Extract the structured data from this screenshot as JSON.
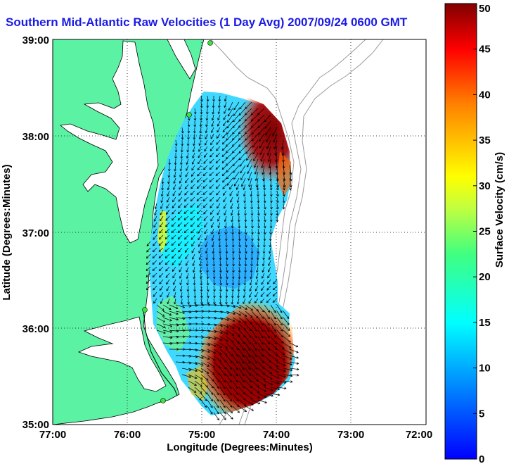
{
  "title": "Southern Mid-Atlantic Raw Velocities (1 Day Avg) 2007/09/24 0600 GMT",
  "axes": {
    "xlabel": "Longitude (Degrees:Minutes)",
    "ylabel": "Latitude (Degrees:Minutes)",
    "x_ticks": [
      "77:00",
      "76:00",
      "75:00",
      "74:00",
      "73:00",
      "72:00"
    ],
    "y_ticks": [
      "39:00",
      "38:00",
      "37:00",
      "36:00",
      "35:00"
    ],
    "x_range_deg_west": [
      77,
      72
    ],
    "y_range_deg_north": [
      35,
      39
    ],
    "grid": "dotted"
  },
  "colorbar": {
    "label": "Surface Velocity (cm/s)",
    "ticks": [
      "50",
      "45",
      "40",
      "35",
      "30",
      "25",
      "20",
      "15",
      "10",
      "5",
      "0"
    ],
    "range": [
      0,
      50
    ],
    "colormap": "jet"
  },
  "colors": {
    "land": "#5cf2a4",
    "water": "#ffffff",
    "title": "#1a1ae6",
    "station": "#39e639",
    "bathymetry": "#9a9a9a"
  }
}
